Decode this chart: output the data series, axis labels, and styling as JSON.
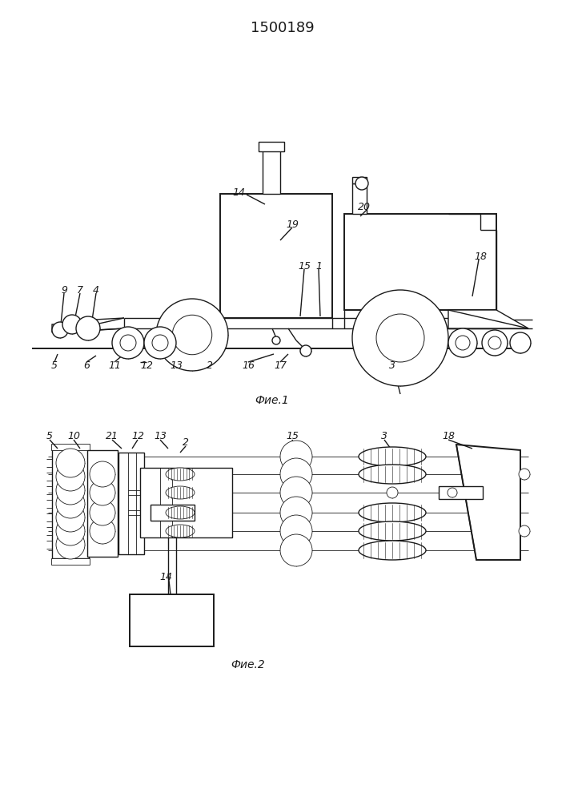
{
  "title": "1500189",
  "fig1_caption": "Фие.1",
  "fig2_caption": "Фие.2",
  "lc": "#1a1a1a",
  "lw": 1.0,
  "lw_thin": 0.6,
  "lw_thick": 1.4
}
